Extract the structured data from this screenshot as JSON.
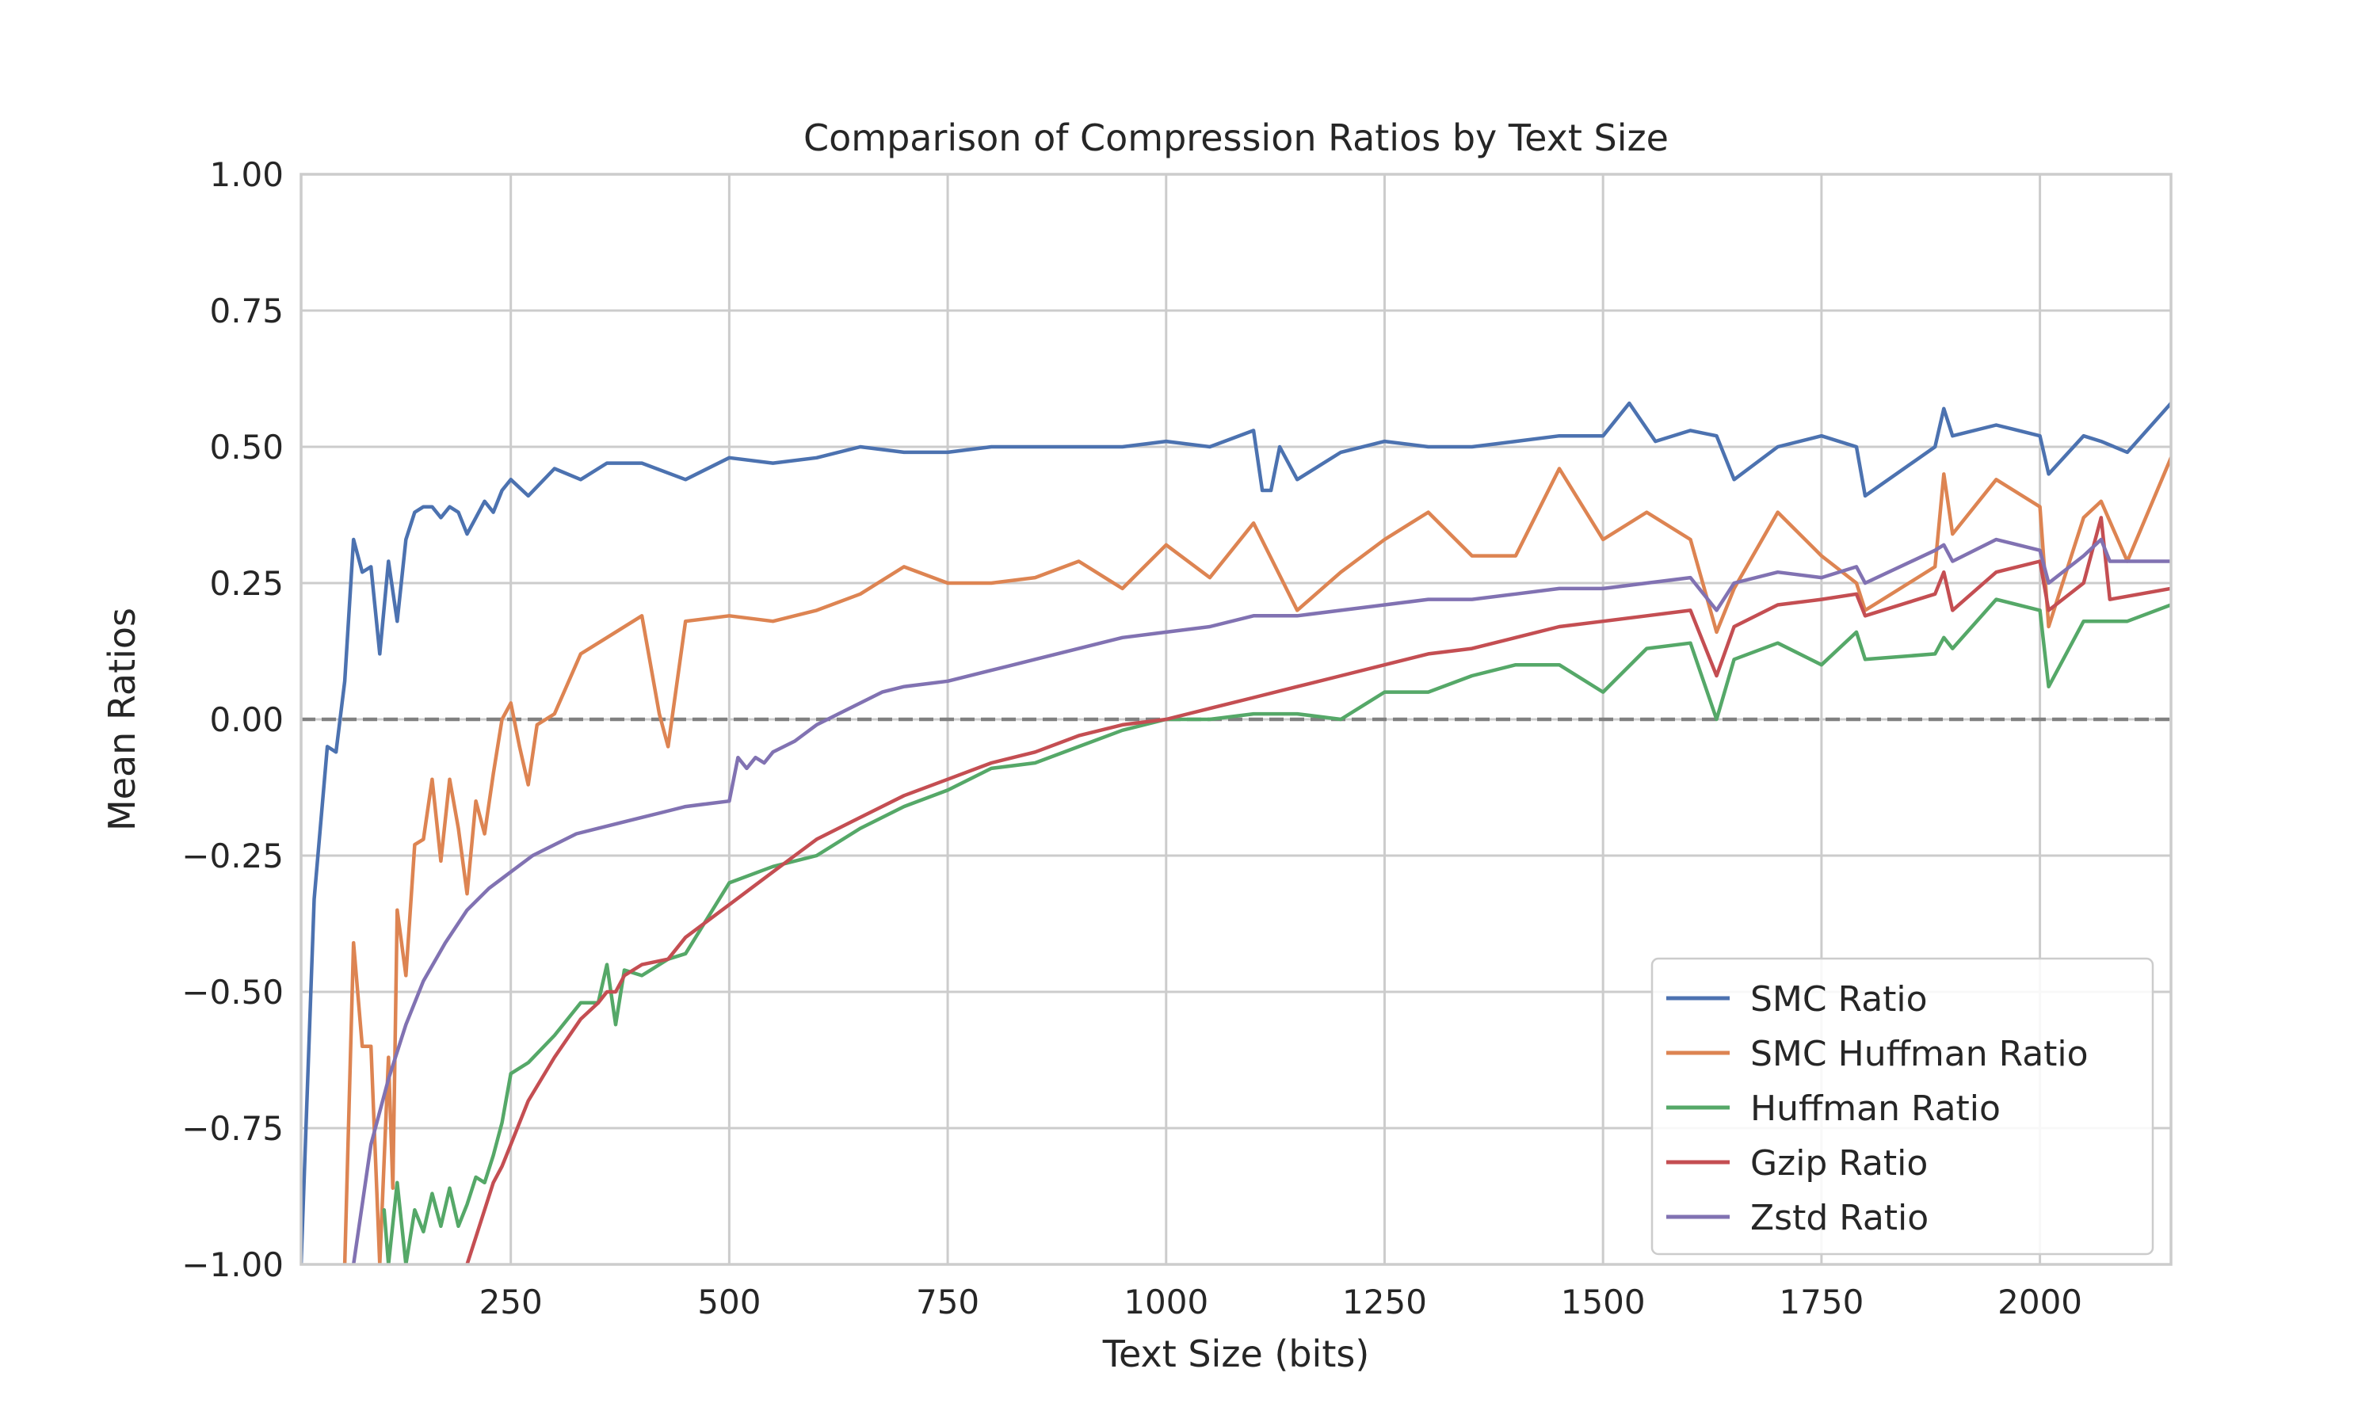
{
  "chart_data": {
    "type": "line",
    "title": "Comparison of Compression Ratios by Text Size",
    "xlabel": "Text Size (bits)",
    "ylabel": "Mean Ratios",
    "xlim": [
      10,
      2150
    ],
    "ylim": [
      -1.0,
      1.0
    ],
    "xticks": [
      250,
      500,
      750,
      1000,
      1250,
      1500,
      1750,
      2000
    ],
    "xtick_labels": [
      "250",
      "500",
      "750",
      "1000",
      "1250",
      "1500",
      "1750",
      "2000"
    ],
    "yticks": [
      1.0,
      0.75,
      0.5,
      0.25,
      0.0,
      -0.25,
      -0.5,
      -0.75,
      -1.0
    ],
    "ytick_labels": [
      "1.00",
      "0.75",
      "0.50",
      "0.25",
      "0.00",
      "−0.25",
      "−0.50",
      "−0.75",
      "−1.00"
    ],
    "grid": true,
    "reference_line": {
      "y": 0.0,
      "style": "dashed",
      "color": "#808080"
    },
    "legend_position": "lower-right",
    "series": [
      {
        "name": "SMC Ratio",
        "color": "#4c72b0",
        "x": [
          10,
          25,
          40,
          50,
          60,
          70,
          80,
          90,
          100,
          110,
          120,
          130,
          140,
          150,
          160,
          170,
          180,
          190,
          200,
          210,
          220,
          230,
          240,
          250,
          270,
          300,
          330,
          360,
          400,
          450,
          500,
          550,
          600,
          650,
          700,
          750,
          800,
          850,
          900,
          950,
          1000,
          1050,
          1100,
          1110,
          1120,
          1130,
          1150,
          1200,
          1250,
          1300,
          1350,
          1400,
          1450,
          1500,
          1530,
          1560,
          1600,
          1630,
          1650,
          1700,
          1750,
          1790,
          1800,
          1880,
          1890,
          1900,
          1950,
          2000,
          2010,
          2050,
          2070,
          2100,
          2150
        ],
        "y": [
          -1.0,
          -0.33,
          -0.05,
          -0.06,
          0.07,
          0.33,
          0.27,
          0.28,
          0.12,
          0.29,
          0.18,
          0.33,
          0.38,
          0.39,
          0.39,
          0.37,
          0.39,
          0.38,
          0.34,
          0.37,
          0.4,
          0.38,
          0.42,
          0.44,
          0.41,
          0.46,
          0.44,
          0.47,
          0.47,
          0.44,
          0.48,
          0.47,
          0.48,
          0.5,
          0.49,
          0.49,
          0.5,
          0.5,
          0.5,
          0.5,
          0.51,
          0.5,
          0.53,
          0.42,
          0.42,
          0.5,
          0.44,
          0.49,
          0.51,
          0.5,
          0.5,
          0.51,
          0.52,
          0.52,
          0.58,
          0.51,
          0.53,
          0.52,
          0.44,
          0.5,
          0.52,
          0.5,
          0.41,
          0.5,
          0.57,
          0.52,
          0.54,
          0.52,
          0.45,
          0.52,
          0.51,
          0.49,
          0.58
        ]
      },
      {
        "name": "SMC Huffman Ratio",
        "color": "#dd8452",
        "x": [
          60,
          70,
          80,
          90,
          100,
          110,
          115,
          120,
          130,
          140,
          150,
          160,
          170,
          180,
          190,
          200,
          210,
          220,
          230,
          240,
          250,
          260,
          270,
          280,
          300,
          330,
          360,
          400,
          420,
          430,
          450,
          500,
          550,
          600,
          650,
          700,
          750,
          800,
          850,
          900,
          950,
          1000,
          1050,
          1100,
          1150,
          1200,
          1250,
          1300,
          1350,
          1400,
          1450,
          1500,
          1550,
          1600,
          1630,
          1650,
          1700,
          1750,
          1790,
          1800,
          1880,
          1890,
          1900,
          1950,
          2000,
          2010,
          2050,
          2070,
          2100,
          2150
        ],
        "y": [
          -1.0,
          -0.41,
          -0.6,
          -0.6,
          -1.0,
          -0.62,
          -0.86,
          -0.35,
          -0.47,
          -0.23,
          -0.22,
          -0.11,
          -0.26,
          -0.11,
          -0.2,
          -0.32,
          -0.15,
          -0.21,
          -0.1,
          0.0,
          0.03,
          -0.05,
          -0.12,
          -0.01,
          0.01,
          0.12,
          0.15,
          0.19,
          0.01,
          -0.05,
          0.18,
          0.19,
          0.18,
          0.2,
          0.23,
          0.28,
          0.25,
          0.25,
          0.26,
          0.29,
          0.24,
          0.32,
          0.26,
          0.36,
          0.2,
          0.27,
          0.33,
          0.38,
          0.3,
          0.3,
          0.46,
          0.33,
          0.38,
          0.33,
          0.16,
          0.24,
          0.38,
          0.3,
          0.25,
          0.2,
          0.28,
          0.45,
          0.34,
          0.44,
          0.39,
          0.17,
          0.37,
          0.4,
          0.29,
          0.48
        ]
      },
      {
        "name": "Huffman Ratio",
        "color": "#55a868",
        "x": [
          105,
          110,
          120,
          130,
          140,
          150,
          160,
          170,
          180,
          190,
          200,
          210,
          220,
          230,
          240,
          250,
          270,
          300,
          330,
          350,
          360,
          370,
          380,
          400,
          430,
          450,
          500,
          550,
          600,
          650,
          700,
          750,
          800,
          850,
          900,
          950,
          1000,
          1050,
          1100,
          1150,
          1200,
          1250,
          1300,
          1350,
          1400,
          1450,
          1500,
          1550,
          1600,
          1630,
          1650,
          1700,
          1750,
          1790,
          1800,
          1880,
          1890,
          1900,
          1950,
          2000,
          2010,
          2050,
          2070,
          2100,
          2150
        ],
        "y": [
          -0.9,
          -1.0,
          -0.85,
          -1.0,
          -0.9,
          -0.94,
          -0.87,
          -0.93,
          -0.86,
          -0.93,
          -0.89,
          -0.84,
          -0.85,
          -0.8,
          -0.74,
          -0.65,
          -0.63,
          -0.58,
          -0.52,
          -0.52,
          -0.45,
          -0.56,
          -0.46,
          -0.47,
          -0.44,
          -0.43,
          -0.3,
          -0.27,
          -0.25,
          -0.2,
          -0.16,
          -0.13,
          -0.09,
          -0.08,
          -0.05,
          -0.02,
          0.0,
          0.0,
          0.01,
          0.01,
          0.0,
          0.05,
          0.05,
          0.08,
          0.1,
          0.1,
          0.05,
          0.13,
          0.14,
          0.0,
          0.11,
          0.14,
          0.1,
          0.16,
          0.11,
          0.12,
          0.15,
          0.13,
          0.22,
          0.2,
          0.06,
          0.18,
          0.18,
          0.18,
          0.21
        ]
      },
      {
        "name": "Gzip Ratio",
        "color": "#c44e52",
        "x": [
          200,
          210,
          220,
          230,
          240,
          250,
          270,
          300,
          330,
          350,
          360,
          370,
          380,
          400,
          430,
          450,
          500,
          550,
          600,
          650,
          700,
          750,
          800,
          850,
          900,
          950,
          1000,
          1050,
          1100,
          1150,
          1200,
          1250,
          1300,
          1350,
          1400,
          1450,
          1500,
          1550,
          1600,
          1630,
          1650,
          1700,
          1750,
          1790,
          1800,
          1880,
          1890,
          1900,
          1950,
          2000,
          2010,
          2050,
          2070,
          2080,
          2150
        ],
        "y": [
          -1.0,
          -0.95,
          -0.9,
          -0.85,
          -0.82,
          -0.78,
          -0.7,
          -0.62,
          -0.55,
          -0.52,
          -0.5,
          -0.5,
          -0.47,
          -0.45,
          -0.44,
          -0.4,
          -0.34,
          -0.28,
          -0.22,
          -0.18,
          -0.14,
          -0.11,
          -0.08,
          -0.06,
          -0.03,
          -0.01,
          0.0,
          0.02,
          0.04,
          0.06,
          0.08,
          0.1,
          0.12,
          0.13,
          0.15,
          0.17,
          0.18,
          0.19,
          0.2,
          0.08,
          0.17,
          0.21,
          0.22,
          0.23,
          0.19,
          0.23,
          0.27,
          0.2,
          0.27,
          0.29,
          0.2,
          0.25,
          0.37,
          0.22,
          0.24
        ]
      },
      {
        "name": "Zstd Ratio",
        "color": "#8172b2",
        "x": [
          70,
          90,
          110,
          130,
          150,
          175,
          200,
          225,
          250,
          275,
          300,
          325,
          350,
          375,
          400,
          425,
          450,
          475,
          500,
          510,
          520,
          530,
          540,
          550,
          575,
          600,
          625,
          650,
          675,
          700,
          750,
          800,
          850,
          900,
          950,
          1000,
          1050,
          1100,
          1150,
          1200,
          1250,
          1300,
          1350,
          1400,
          1450,
          1500,
          1550,
          1600,
          1630,
          1650,
          1700,
          1750,
          1790,
          1800,
          1880,
          1890,
          1900,
          1950,
          2000,
          2010,
          2050,
          2070,
          2080,
          2150
        ],
        "y": [
          -1.0,
          -0.78,
          -0.66,
          -0.56,
          -0.48,
          -0.41,
          -0.35,
          -0.31,
          -0.28,
          -0.25,
          -0.23,
          -0.21,
          -0.2,
          -0.19,
          -0.18,
          -0.17,
          -0.16,
          -0.155,
          -0.15,
          -0.07,
          -0.09,
          -0.07,
          -0.08,
          -0.06,
          -0.04,
          -0.01,
          0.01,
          0.03,
          0.05,
          0.06,
          0.07,
          0.09,
          0.11,
          0.13,
          0.15,
          0.16,
          0.17,
          0.19,
          0.19,
          0.2,
          0.21,
          0.22,
          0.22,
          0.23,
          0.24,
          0.24,
          0.25,
          0.26,
          0.2,
          0.25,
          0.27,
          0.26,
          0.28,
          0.25,
          0.31,
          0.32,
          0.29,
          0.33,
          0.31,
          0.25,
          0.3,
          0.33,
          0.29,
          0.29
        ]
      }
    ]
  }
}
